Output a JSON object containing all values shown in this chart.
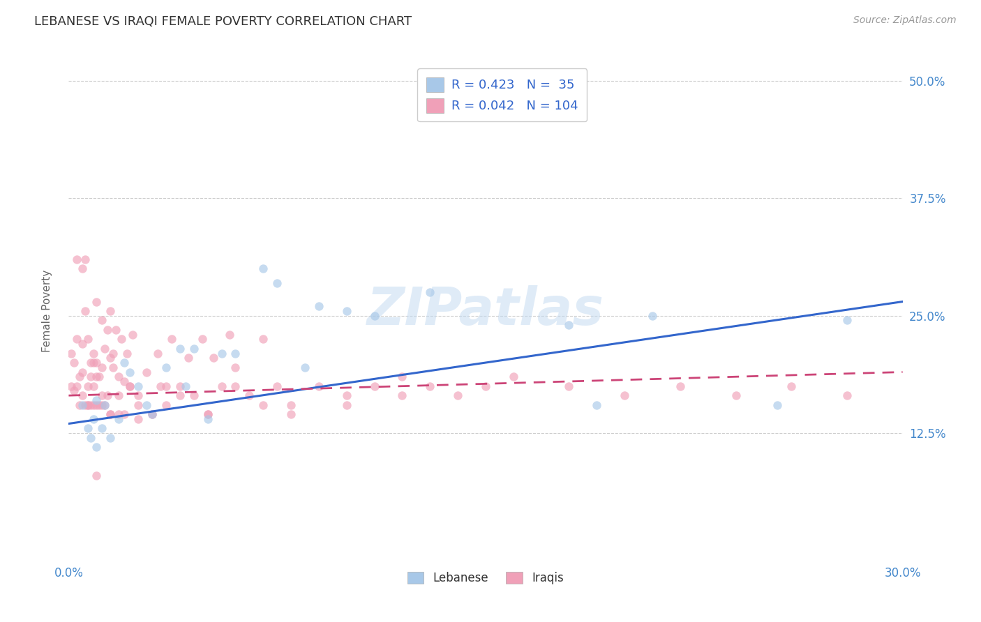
{
  "title": "LEBANESE VS IRAQI FEMALE POVERTY CORRELATION CHART",
  "source": "Source: ZipAtlas.com",
  "ylabel": "Female Poverty",
  "xlim": [
    0.0,
    0.3
  ],
  "ylim": [
    -0.01,
    0.52
  ],
  "ytick_positions": [
    0.0,
    0.125,
    0.25,
    0.375,
    0.5
  ],
  "ytick_labels": [
    "",
    "12.5%",
    "25.0%",
    "37.5%",
    "50.0%"
  ],
  "grid_color": "#cccccc",
  "background_color": "#ffffff",
  "watermark": "ZIPatlas",
  "blue_color": "#a8c8e8",
  "pink_color": "#f0a0b8",
  "trend_blue": "#3366cc",
  "trend_pink": "#cc4477",
  "title_color": "#333333",
  "axis_label_color": "#4488cc",
  "legend_R_color": "#3366cc",
  "leb_R": "0.423",
  "leb_N": "35",
  "irq_R": "0.042",
  "irq_N": "104",
  "lebanese_x": [
    0.005,
    0.007,
    0.008,
    0.009,
    0.01,
    0.01,
    0.012,
    0.013,
    0.015,
    0.018,
    0.02,
    0.022,
    0.025,
    0.028,
    0.03,
    0.035,
    0.04,
    0.042,
    0.045,
    0.05,
    0.055,
    0.06,
    0.07,
    0.075,
    0.085,
    0.09,
    0.1,
    0.11,
    0.13,
    0.14,
    0.18,
    0.19,
    0.21,
    0.255,
    0.28
  ],
  "lebanese_y": [
    0.155,
    0.13,
    0.12,
    0.14,
    0.16,
    0.11,
    0.13,
    0.155,
    0.12,
    0.14,
    0.2,
    0.19,
    0.175,
    0.155,
    0.145,
    0.195,
    0.215,
    0.175,
    0.215,
    0.14,
    0.21,
    0.21,
    0.3,
    0.285,
    0.195,
    0.26,
    0.255,
    0.25,
    0.275,
    0.47,
    0.24,
    0.155,
    0.25,
    0.155,
    0.245
  ],
  "iraqi_x": [
    0.001,
    0.001,
    0.002,
    0.002,
    0.003,
    0.003,
    0.004,
    0.004,
    0.005,
    0.005,
    0.005,
    0.006,
    0.006,
    0.007,
    0.007,
    0.007,
    0.008,
    0.008,
    0.008,
    0.009,
    0.009,
    0.009,
    0.01,
    0.01,
    0.01,
    0.01,
    0.011,
    0.011,
    0.012,
    0.012,
    0.012,
    0.013,
    0.013,
    0.014,
    0.014,
    0.015,
    0.015,
    0.016,
    0.016,
    0.017,
    0.018,
    0.018,
    0.019,
    0.02,
    0.02,
    0.021,
    0.022,
    0.023,
    0.025,
    0.025,
    0.028,
    0.03,
    0.032,
    0.033,
    0.035,
    0.037,
    0.04,
    0.043,
    0.045,
    0.048,
    0.05,
    0.052,
    0.055,
    0.058,
    0.06,
    0.065,
    0.07,
    0.075,
    0.08,
    0.09,
    0.1,
    0.11,
    0.12,
    0.13,
    0.14,
    0.15,
    0.16,
    0.18,
    0.2,
    0.22,
    0.24,
    0.26,
    0.28,
    0.005,
    0.007,
    0.009,
    0.012,
    0.015,
    0.018,
    0.022,
    0.025,
    0.03,
    0.035,
    0.04,
    0.05,
    0.06,
    0.07,
    0.08,
    0.1,
    0.12,
    0.003,
    0.006,
    0.01,
    0.015
  ],
  "iraqi_y": [
    0.175,
    0.21,
    0.2,
    0.17,
    0.225,
    0.175,
    0.185,
    0.155,
    0.22,
    0.165,
    0.19,
    0.255,
    0.155,
    0.225,
    0.175,
    0.155,
    0.185,
    0.155,
    0.2,
    0.175,
    0.155,
    0.21,
    0.265,
    0.155,
    0.185,
    0.2,
    0.185,
    0.155,
    0.245,
    0.165,
    0.195,
    0.215,
    0.155,
    0.235,
    0.165,
    0.255,
    0.145,
    0.195,
    0.21,
    0.235,
    0.165,
    0.145,
    0.225,
    0.18,
    0.145,
    0.21,
    0.175,
    0.23,
    0.165,
    0.14,
    0.19,
    0.145,
    0.21,
    0.175,
    0.155,
    0.225,
    0.175,
    0.205,
    0.165,
    0.225,
    0.145,
    0.205,
    0.175,
    0.23,
    0.195,
    0.165,
    0.225,
    0.175,
    0.155,
    0.175,
    0.165,
    0.175,
    0.185,
    0.175,
    0.165,
    0.175,
    0.185,
    0.175,
    0.165,
    0.175,
    0.165,
    0.175,
    0.165,
    0.3,
    0.155,
    0.2,
    0.155,
    0.145,
    0.185,
    0.175,
    0.155,
    0.145,
    0.175,
    0.165,
    0.145,
    0.175,
    0.155,
    0.145,
    0.155,
    0.165,
    0.31,
    0.31,
    0.08,
    0.205
  ],
  "trend_blue_x0": 0.0,
  "trend_blue_y0": 0.135,
  "trend_blue_x1": 0.3,
  "trend_blue_y1": 0.265,
  "trend_pink_x0": 0.0,
  "trend_pink_y0": 0.165,
  "trend_pink_x1": 0.3,
  "trend_pink_y1": 0.19
}
